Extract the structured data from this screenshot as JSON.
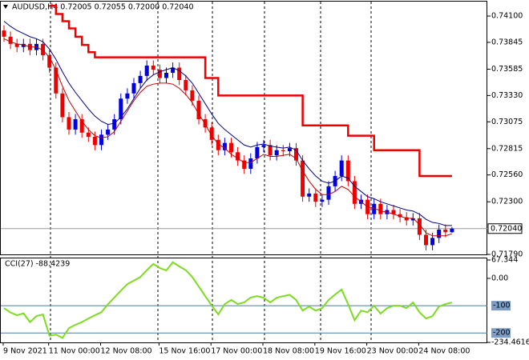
{
  "chart_data": [
    {
      "type": "candlestick",
      "title": "AUDUSD,H4  0.72005 0.72055 0.72000 0.72040",
      "categories": [
        "9 Nov 2021",
        null,
        null,
        null,
        null,
        null,
        null,
        "11 Nov 00:00",
        null,
        null,
        null,
        null,
        null,
        null,
        null,
        "12 Nov 08:00",
        null,
        null,
        null,
        null,
        null,
        null,
        null,
        null,
        "15 Nov 16:00",
        null,
        null,
        null,
        null,
        null,
        null,
        null,
        "17 Nov 00:00",
        null,
        null,
        null,
        null,
        null,
        null,
        null,
        "18 Nov 08:00",
        null,
        null,
        null,
        null,
        null,
        null,
        null,
        "19 Nov 16:00",
        null,
        null,
        null,
        null,
        null,
        null,
        null,
        "23 Nov 00:00",
        null,
        null,
        null,
        null,
        null,
        null,
        null,
        "24 Nov 08:00",
        null,
        null,
        null,
        null,
        null
      ],
      "open": [
        0.7396,
        0.739,
        0.7383,
        0.738,
        0.7383,
        0.7377,
        0.7383,
        0.7372,
        0.736,
        0.7335,
        0.7312,
        0.73,
        0.731,
        0.7297,
        0.7293,
        0.7285,
        0.7295,
        0.73,
        0.731,
        0.733,
        0.7335,
        0.7345,
        0.7352,
        0.7362,
        0.7358,
        0.735,
        0.7355,
        0.736,
        0.7348,
        0.7338,
        0.7328,
        0.731,
        0.7302,
        0.729,
        0.728,
        0.7287,
        0.7278,
        0.727,
        0.7262,
        0.7272,
        0.7283,
        0.7285,
        0.7275,
        0.728,
        0.7279,
        0.7282,
        0.727,
        0.7235,
        0.7238,
        0.723,
        0.7232,
        0.7245,
        0.7255,
        0.727,
        0.725,
        0.7228,
        0.7232,
        0.7218,
        0.7228,
        0.7218,
        0.7222,
        0.7218,
        0.7215,
        0.7212,
        0.7214,
        0.7198,
        0.7188,
        0.7195,
        0.7203,
        0.72005
      ],
      "high": [
        0.7401,
        0.7395,
        0.7388,
        0.7388,
        0.7388,
        0.7388,
        0.7388,
        0.7377,
        0.7365,
        0.734,
        0.7317,
        0.7315,
        0.7315,
        0.7302,
        0.7298,
        0.73,
        0.7305,
        0.7315,
        0.7335,
        0.734,
        0.735,
        0.7357,
        0.7367,
        0.7367,
        0.7363,
        0.736,
        0.7365,
        0.7365,
        0.7353,
        0.7343,
        0.7333,
        0.7315,
        0.7307,
        0.7295,
        0.7292,
        0.7292,
        0.7283,
        0.7275,
        0.7277,
        0.7288,
        0.729,
        0.729,
        0.7285,
        0.7285,
        0.7287,
        0.7287,
        0.7275,
        0.7243,
        0.7243,
        0.7237,
        0.725,
        0.726,
        0.7275,
        0.7275,
        0.7255,
        0.7237,
        0.7237,
        0.7233,
        0.7233,
        0.7227,
        0.7227,
        0.7223,
        0.722,
        0.7219,
        0.7219,
        0.7203,
        0.72,
        0.7208,
        0.7208,
        0.72055
      ],
      "low": [
        0.7385,
        0.7378,
        0.7375,
        0.7375,
        0.7372,
        0.7372,
        0.7367,
        0.7355,
        0.733,
        0.7307,
        0.7295,
        0.7295,
        0.7292,
        0.7288,
        0.728,
        0.728,
        0.729,
        0.7295,
        0.7305,
        0.7325,
        0.733,
        0.734,
        0.7347,
        0.7353,
        0.7345,
        0.7345,
        0.735,
        0.7343,
        0.7333,
        0.7323,
        0.7305,
        0.7297,
        0.7285,
        0.7275,
        0.7275,
        0.7273,
        0.7265,
        0.7257,
        0.7257,
        0.7267,
        0.7278,
        0.727,
        0.727,
        0.7274,
        0.7274,
        0.7265,
        0.723,
        0.723,
        0.7225,
        0.7225,
        0.7227,
        0.724,
        0.725,
        0.7245,
        0.7223,
        0.7223,
        0.7213,
        0.7213,
        0.7213,
        0.7213,
        0.7213,
        0.721,
        0.7207,
        0.7207,
        0.7193,
        0.7183,
        0.7183,
        0.719,
        0.71955,
        0.72
      ],
      "close": [
        0.739,
        0.7383,
        0.738,
        0.7383,
        0.7377,
        0.7383,
        0.7372,
        0.736,
        0.7335,
        0.7312,
        0.73,
        0.731,
        0.7297,
        0.7293,
        0.7285,
        0.7295,
        0.73,
        0.731,
        0.733,
        0.7335,
        0.7345,
        0.7352,
        0.7362,
        0.7358,
        0.735,
        0.7355,
        0.736,
        0.7348,
        0.7338,
        0.7328,
        0.731,
        0.7302,
        0.729,
        0.728,
        0.7287,
        0.7278,
        0.727,
        0.7262,
        0.7272,
        0.7283,
        0.7285,
        0.7275,
        0.728,
        0.7279,
        0.7282,
        0.727,
        0.7235,
        0.7238,
        0.723,
        0.7232,
        0.7245,
        0.7255,
        0.727,
        0.725,
        0.7228,
        0.7232,
        0.7218,
        0.7228,
        0.7218,
        0.7222,
        0.7218,
        0.7215,
        0.7212,
        0.7214,
        0.7198,
        0.7188,
        0.7195,
        0.7203,
        0.72005,
        0.7204
      ],
      "up_color": "#0000e0",
      "down_color": "#ee0000",
      "series": [
        {
          "color": "#00008b",
          "width": 1,
          "values": [
            0.7405,
            0.74,
            0.7396,
            0.7393,
            0.739,
            0.7388,
            0.7385,
            0.7378,
            0.7368,
            0.7356,
            0.7345,
            0.7336,
            0.7328,
            0.732,
            0.7313,
            0.7308,
            0.7305,
            0.7306,
            0.7312,
            0.732,
            0.733,
            0.734,
            0.7348,
            0.7353,
            0.7356,
            0.7358,
            0.736,
            0.7357,
            0.7352,
            0.7345,
            0.7335,
            0.7325,
            0.7315,
            0.7306,
            0.73,
            0.7295,
            0.729,
            0.7285,
            0.7283,
            0.7285,
            0.7286,
            0.7284,
            0.7283,
            0.7282,
            0.7283,
            0.728,
            0.727,
            0.7262,
            0.7255,
            0.725,
            0.7248,
            0.725,
            0.7255,
            0.7253,
            0.7245,
            0.724,
            0.7235,
            0.7233,
            0.723,
            0.7228,
            0.7226,
            0.7224,
            0.7222,
            0.7221,
            0.7218,
            0.7213,
            0.721,
            0.7209,
            0.7207,
            0.7207
          ]
        },
        {
          "color": "#cc0000",
          "width": 1,
          "values": [
            0.7388,
            0.7385,
            0.7383,
            0.7382,
            0.738,
            0.738,
            0.7377,
            0.737,
            0.7358,
            0.7342,
            0.7328,
            0.7318,
            0.7308,
            0.73,
            0.7294,
            0.7292,
            0.7293,
            0.7298,
            0.7308,
            0.7318,
            0.7328,
            0.7336,
            0.7342,
            0.7344,
            0.7345,
            0.7345,
            0.7344,
            0.734,
            0.7334,
            0.7326,
            0.7315,
            0.7305,
            0.7294,
            0.7286,
            0.7282,
            0.7276,
            0.7272,
            0.7268,
            0.7268,
            0.7272,
            0.7276,
            0.7274,
            0.7274,
            0.7275,
            0.7276,
            0.7272,
            0.726,
            0.725,
            0.7242,
            0.7237,
            0.7237,
            0.724,
            0.7245,
            0.7242,
            0.7235,
            0.723,
            0.7225,
            0.7224,
            0.7221,
            0.722,
            0.7218,
            0.7216,
            0.7214,
            0.7214,
            0.7208,
            0.72,
            0.7197,
            0.7197,
            0.7197,
            0.7199
          ]
        },
        {
          "color": "#ee0000",
          "width": 2.5,
          "step": true,
          "values": [
            null,
            null,
            null,
            null,
            null,
            null,
            null,
            0.742,
            0.7412,
            0.7405,
            0.7398,
            0.739,
            0.7382,
            0.7375,
            0.737,
            0.737,
            0.737,
            0.737,
            0.737,
            0.737,
            0.737,
            0.737,
            0.737,
            0.737,
            0.737,
            0.737,
            0.737,
            0.737,
            0.737,
            0.737,
            0.737,
            0.735,
            0.735,
            0.7333,
            0.7333,
            0.7333,
            0.7333,
            0.7333,
            0.7333,
            0.7333,
            0.7333,
            0.7333,
            0.7333,
            0.7333,
            0.7333,
            0.7333,
            0.7304,
            0.7304,
            0.7304,
            0.7304,
            0.7304,
            0.7304,
            0.7304,
            0.7294,
            0.7294,
            0.7294,
            0.7294,
            0.728,
            0.728,
            0.728,
            0.728,
            0.728,
            0.728,
            0.728,
            0.7255,
            0.7255,
            0.7255,
            0.7255,
            0.7255,
            0.7255
          ]
        }
      ],
      "ylim": [
        0.7179,
        0.7424
      ],
      "yticks": [
        {
          "value": 0.741,
          "label": "0.74100"
        },
        {
          "value": 0.73845,
          "label": "0.73845"
        },
        {
          "value": 0.73585,
          "label": "0.73585"
        },
        {
          "value": 0.7333,
          "label": "0.73330"
        },
        {
          "value": 0.73075,
          "label": "0.73075"
        },
        {
          "value": 0.72815,
          "label": "0.72815"
        },
        {
          "value": 0.7256,
          "label": "0.72560"
        },
        {
          "value": 0.723,
          "label": "0.72300"
        },
        {
          "value": 0.7179,
          "label": "0.71790"
        }
      ],
      "current_price": {
        "value": 0.7204,
        "label": "0.72040"
      }
    },
    {
      "type": "line",
      "title": "CCI(27) -88.4239",
      "color": "#7ddc1f",
      "values": [
        -109,
        -125,
        -135,
        -128,
        -160,
        -138,
        -132,
        -210,
        -206,
        -218,
        -182,
        -170,
        -160,
        -147,
        -135,
        -124,
        -95,
        -70,
        -45,
        -21,
        -8,
        5,
        30,
        53,
        38,
        29,
        59,
        44,
        30,
        5,
        -30,
        -65,
        -100,
        -132,
        -94,
        -79,
        -94,
        -88,
        -70,
        -65,
        -71,
        -88,
        -71,
        -65,
        -60,
        -79,
        -118,
        -103,
        -118,
        -109,
        -79,
        -59,
        -41,
        -94,
        -153,
        -118,
        -124,
        -100,
        -129,
        -109,
        -100,
        -100,
        -109,
        -88,
        -124,
        -147,
        -138,
        -103,
        -94,
        -88.4239
      ],
      "ylim": [
        -234.4616,
        67.344
      ],
      "yticks": [
        67.344,
        {
          "value": 0,
          "label": "0.00"
        },
        -234.4616
      ],
      "levels": [
        -100,
        -200
      ]
    }
  ]
}
